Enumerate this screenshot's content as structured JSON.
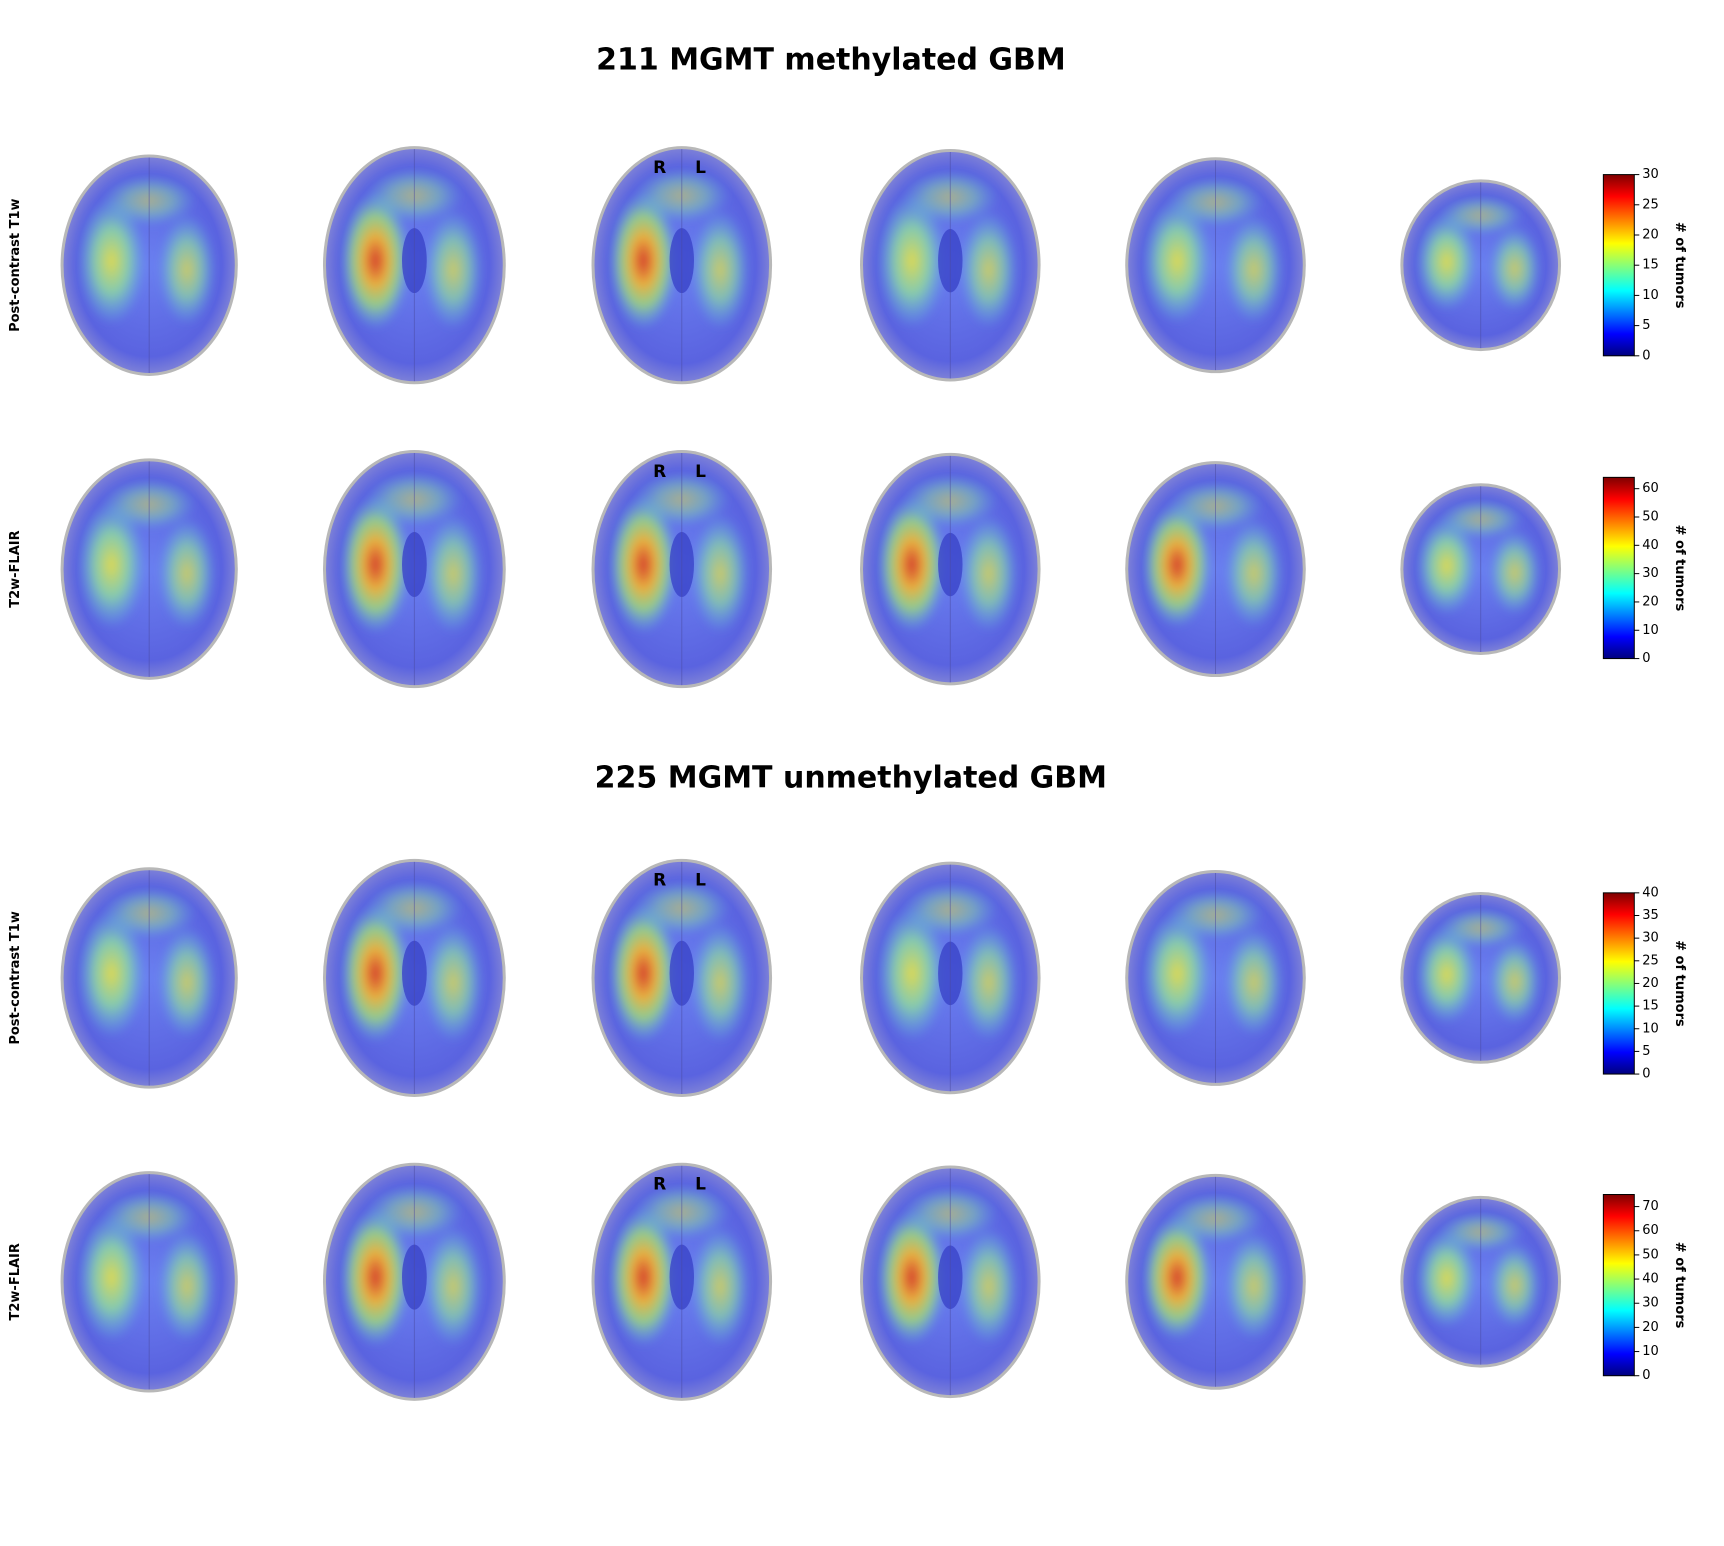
{
  "sections": [
    {
      "title": "211 MGMT methylated GBM",
      "rows": [
        {
          "label": "Post-contrast T1w",
          "orientation": [
            "R",
            "L"
          ],
          "colorbar": {
            "label": "# of tumors",
            "lim": [
              0,
              30
            ],
            "ticks": [
              0,
              5,
              10,
              15,
              20,
              25,
              30
            ]
          }
        },
        {
          "label": "T2w-FLAIR",
          "orientation": [
            "R",
            "L"
          ],
          "colorbar": {
            "label": "# of tumors",
            "lim": [
              0,
              64
            ],
            "ticks": [
              0,
              10,
              20,
              30,
              40,
              50,
              60
            ]
          }
        }
      ]
    },
    {
      "title": "225 MGMT unmethylated GBM",
      "rows": [
        {
          "label": "Post-contrast T1w",
          "orientation": [
            "R",
            "L"
          ],
          "colorbar": {
            "label": "# of tumors",
            "lim": [
              0,
              40
            ],
            "ticks": [
              0,
              5,
              10,
              15,
              20,
              25,
              30,
              35,
              40
            ]
          }
        },
        {
          "label": "T2w-FLAIR",
          "orientation": [
            "R",
            "L"
          ],
          "colorbar": {
            "label": "# of tumors",
            "lim": [
              0,
              75
            ],
            "ticks": [
              0,
              10,
              20,
              30,
              40,
              50,
              60,
              70
            ]
          }
        }
      ]
    }
  ]
}
